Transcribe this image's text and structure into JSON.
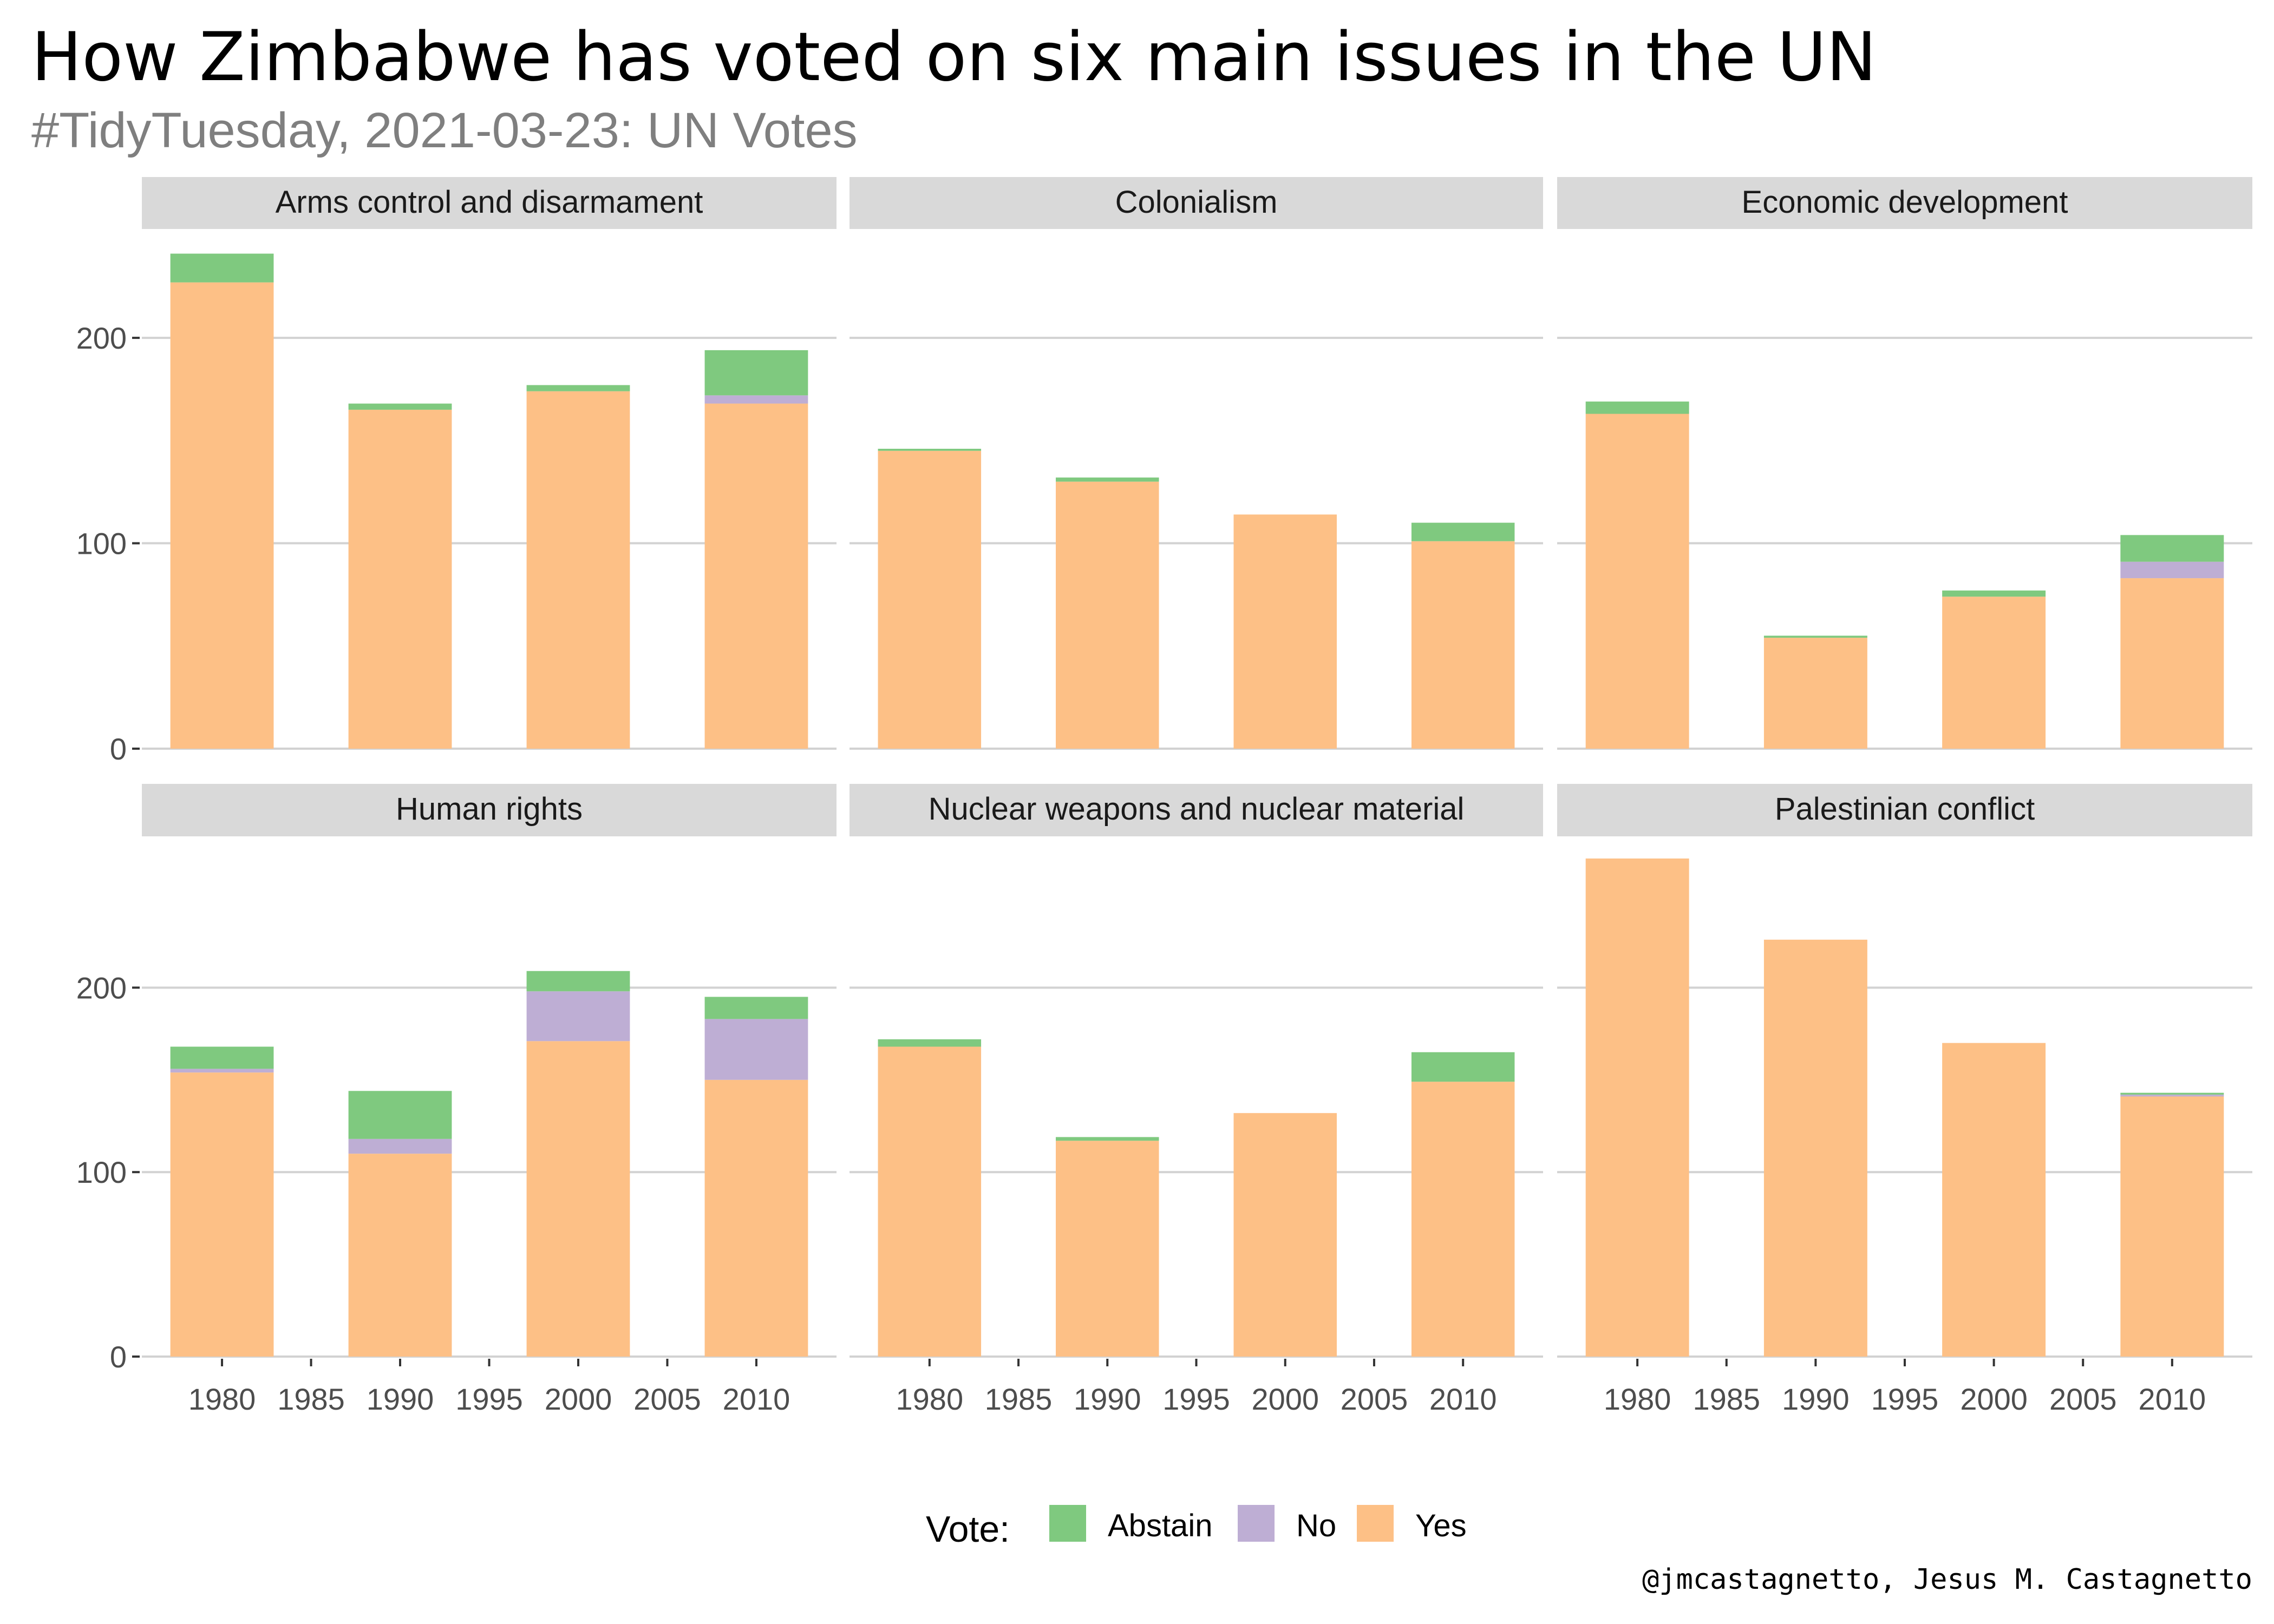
{
  "title": "How Zimbabwe has voted on six main issues in the UN",
  "subtitle": "#TidyTuesday, 2021-03-23: UN Votes",
  "caption": "@jmcastagnetto, Jesus M. Castagnetto",
  "legend": {
    "title": "Vote:",
    "items": [
      {
        "label": "Abstain",
        "color": "#7fc97f"
      },
      {
        "label": "No",
        "color": "#beaed4"
      },
      {
        "label": "Yes",
        "color": "#fdc086"
      }
    ]
  },
  "chart_data": {
    "type": "bar",
    "stacked": true,
    "facets": [
      "Arms control and disarmament",
      "Colonialism",
      "Economic development",
      "Human rights",
      "Nuclear weapons and nuclear material",
      "Palestinian conflict"
    ],
    "x": [
      1980,
      1990,
      2000,
      2010
    ],
    "x_ticks": [
      1980,
      1985,
      1990,
      1995,
      2000,
      2005,
      2010
    ],
    "xlim": [
      1975.5,
      2014.5
    ],
    "y_ticks": [
      0,
      100,
      200
    ],
    "ylim_row1": [
      0,
      253
    ],
    "ylim_row2": [
      0,
      282
    ],
    "series_order": [
      "Yes",
      "No",
      "Abstain"
    ],
    "panels": [
      {
        "facet": "Arms control and disarmament",
        "Yes": [
          227,
          165,
          174,
          168
        ],
        "No": [
          0,
          0,
          0,
          4
        ],
        "Abstain": [
          14,
          3,
          3,
          22
        ]
      },
      {
        "facet": "Colonialism",
        "Yes": [
          145,
          130,
          114,
          101
        ],
        "No": [
          0,
          0,
          0,
          0
        ],
        "Abstain": [
          1,
          2,
          0,
          9
        ]
      },
      {
        "facet": "Economic development",
        "Yes": [
          163,
          54,
          74,
          83
        ],
        "No": [
          0,
          0,
          0,
          8
        ],
        "Abstain": [
          6,
          1,
          3,
          13
        ]
      },
      {
        "facet": "Human rights",
        "Yes": [
          154,
          110,
          171,
          150
        ],
        "No": [
          2,
          8,
          27,
          33
        ],
        "Abstain": [
          12,
          26,
          11,
          12
        ]
      },
      {
        "facet": "Nuclear weapons and nuclear material",
        "Yes": [
          168,
          117,
          132,
          149
        ],
        "No": [
          0,
          0,
          0,
          0
        ],
        "Abstain": [
          4,
          2,
          0,
          16
        ]
      },
      {
        "facet": "Palestinian conflict",
        "Yes": [
          270,
          226,
          170,
          141
        ],
        "No": [
          0,
          0,
          0,
          1
        ],
        "Abstain": [
          0,
          0,
          0,
          1
        ]
      }
    ]
  }
}
